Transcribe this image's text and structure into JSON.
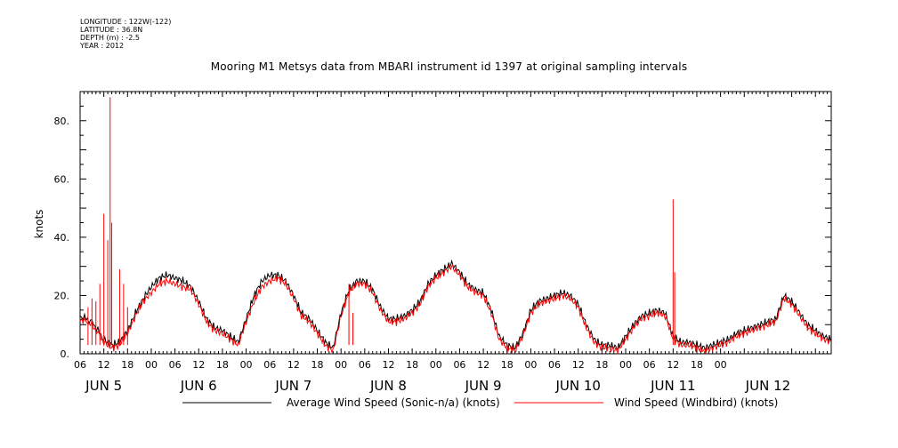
{
  "meta": {
    "longitude": "LONGITUDE : 122W(-122)",
    "latitude": "LATITUDE : 36.8N",
    "depth": "DEPTH (m) : -2.5",
    "year": "YEAR : 2012"
  },
  "chart_data": {
    "type": "line",
    "title": "Mooring M1 Metsys data from MBARI instrument id 1397 at original sampling intervals",
    "ylabel": "knots",
    "xlabel": "",
    "ylim": [
      0,
      90
    ],
    "yticks": [
      0,
      20,
      40,
      60,
      80
    ],
    "ytick_labels": [
      "0.",
      "20.",
      "40.",
      "60.",
      "80."
    ],
    "xlim_hours": [
      0,
      190
    ],
    "hour_ticks": [
      "06",
      "12",
      "18",
      "00",
      "06",
      "12",
      "18",
      "00",
      "06",
      "12",
      "18",
      "00",
      "06",
      "12",
      "18",
      "00",
      "06",
      "12",
      "18",
      "00",
      "06",
      "12",
      "18",
      "00",
      "06",
      "12",
      "18",
      "00"
    ],
    "day_labels": [
      "JUN  5",
      "JUN  6",
      "JUN  7",
      "JUN  8",
      "JUN  9",
      "JUN 10",
      "JUN 11",
      "JUN 12"
    ],
    "grid": false,
    "legend_position": "bottom",
    "series": [
      {
        "name": "Average Wind Speed (Sonic-n/a) (knots)",
        "color": "#000000",
        "x": [
          0,
          3,
          6,
          8,
          10,
          12,
          14,
          16,
          18,
          20,
          22,
          24,
          26,
          28,
          30,
          32,
          34,
          36,
          38,
          40,
          42,
          44,
          46,
          48,
          50,
          52,
          54,
          56,
          58,
          60,
          62,
          64,
          66,
          68,
          70,
          72,
          74,
          76,
          78,
          80,
          82,
          84,
          86,
          88,
          90,
          92,
          94,
          96,
          98,
          100,
          102,
          104,
          106,
          108,
          110,
          112,
          114,
          116,
          118,
          120,
          122,
          124,
          126,
          128,
          130,
          132,
          134,
          136,
          138,
          140,
          142,
          144,
          146,
          148,
          150,
          152,
          154,
          156,
          158,
          160,
          162,
          164,
          166,
          168,
          170,
          172,
          174,
          176,
          178,
          180,
          182,
          184,
          186,
          188,
          190
        ],
        "y": [
          13,
          11,
          5,
          3,
          4,
          8,
          14,
          19,
          23,
          26,
          27,
          26,
          25,
          23,
          18,
          12,
          9,
          8,
          6,
          4,
          12,
          20,
          25,
          27,
          27,
          25,
          20,
          14,
          12,
          8,
          4,
          2,
          14,
          22,
          25,
          25,
          22,
          16,
          12,
          12,
          13,
          15,
          18,
          24,
          27,
          29,
          31,
          28,
          24,
          22,
          21,
          15,
          6,
          3,
          2,
          7,
          15,
          18,
          19,
          20,
          21,
          20,
          17,
          10,
          5,
          3,
          3,
          2,
          6,
          10,
          13,
          14,
          15,
          14,
          6,
          4,
          4,
          3,
          2,
          3,
          4,
          5,
          7,
          8,
          9,
          10,
          11,
          12,
          20,
          18,
          14,
          10,
          8,
          6,
          5
        ]
      },
      {
        "name": "Wind Speed (Windbird) (knots)",
        "color": "#ff0000",
        "x": [
          0,
          3,
          6,
          8,
          10,
          12,
          14,
          16,
          18,
          20,
          22,
          24,
          26,
          28,
          30,
          32,
          34,
          36,
          38,
          40,
          42,
          44,
          46,
          48,
          50,
          52,
          54,
          56,
          58,
          60,
          62,
          64,
          66,
          68,
          70,
          72,
          74,
          76,
          78,
          80,
          82,
          84,
          86,
          88,
          90,
          92,
          94,
          96,
          98,
          100,
          102,
          104,
          106,
          108,
          110,
          112,
          114,
          116,
          118,
          120,
          122,
          124,
          126,
          128,
          130,
          132,
          134,
          136,
          138,
          140,
          142,
          144,
          146,
          148,
          150,
          152,
          154,
          156,
          158,
          160,
          162,
          164,
          166,
          168,
          170,
          172,
          174,
          176,
          178,
          180,
          182,
          184,
          186,
          188,
          190
        ],
        "y": [
          12,
          10,
          4,
          2,
          3,
          7,
          13,
          18,
          21,
          24,
          25,
          24,
          23,
          22,
          17,
          11,
          8,
          7,
          5,
          3,
          11,
          18,
          23,
          25,
          26,
          24,
          19,
          13,
          11,
          7,
          3,
          1,
          13,
          21,
          24,
          24,
          21,
          15,
          11,
          11,
          12,
          14,
          17,
          23,
          26,
          28,
          30,
          27,
          23,
          21,
          20,
          14,
          5,
          2,
          1,
          6,
          14,
          17,
          18,
          19,
          20,
          19,
          16,
          9,
          4,
          2,
          2,
          1,
          5,
          9,
          12,
          13,
          14,
          13,
          5,
          3,
          3,
          2,
          1,
          2,
          3,
          4,
          6,
          7,
          8,
          9,
          10,
          11,
          19,
          17,
          13,
          9,
          7,
          5,
          4
        ],
        "spikes": [
          {
            "x": 2,
            "y": 16
          },
          {
            "x": 3,
            "y": 19
          },
          {
            "x": 4,
            "y": 18
          },
          {
            "x": 5,
            "y": 24
          },
          {
            "x": 6,
            "y": 48
          },
          {
            "x": 7,
            "y": 39
          },
          {
            "x": 7.6,
            "y": 88
          },
          {
            "x": 8,
            "y": 45
          },
          {
            "x": 10,
            "y": 29
          },
          {
            "x": 11,
            "y": 24
          },
          {
            "x": 12,
            "y": 16
          },
          {
            "x": 68,
            "y": 24
          },
          {
            "x": 69,
            "y": 14
          },
          {
            "x": 150,
            "y": 53
          },
          {
            "x": 150.4,
            "y": 28
          }
        ]
      }
    ]
  }
}
